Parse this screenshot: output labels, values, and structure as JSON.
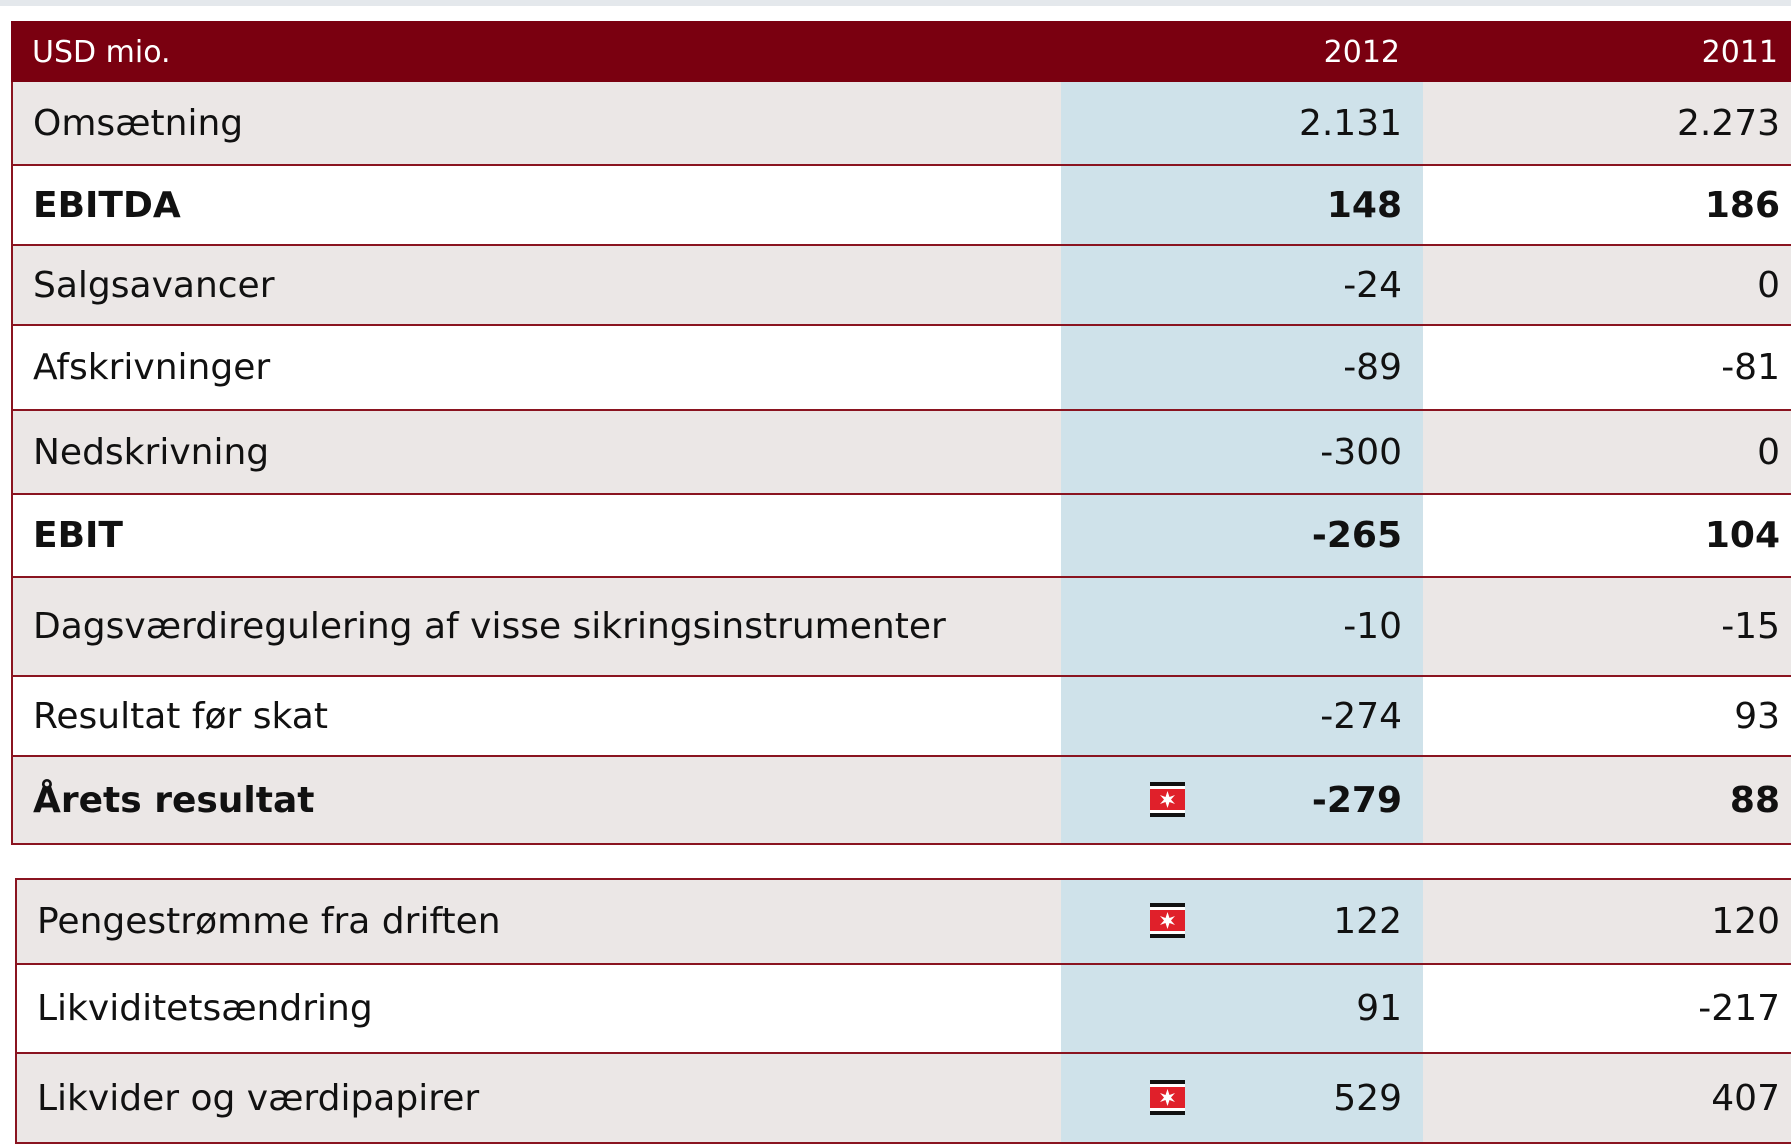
{
  "header": {
    "unit": "USD mio.",
    "years": [
      "2012",
      "2011"
    ]
  },
  "tables": [
    {
      "rows": [
        {
          "cells": [
            "Omsætning",
            "2.131",
            "2.273"
          ]
        },
        {
          "cells": [
            "EBITDA",
            "148",
            "186"
          ],
          "bold": true
        },
        {
          "cells": [
            "Salgsavancer",
            "-24",
            "0"
          ]
        },
        {
          "cells": [
            "Afskrivninger",
            "-89",
            "-81"
          ]
        },
        {
          "cells": [
            "Nedskrivning",
            "-300",
            "0"
          ]
        },
        {
          "cells": [
            "EBIT",
            "-265",
            "104"
          ],
          "bold": true
        },
        {
          "cells": [
            "Dagsværdiregulering af visse sikringsinstrumenter",
            "-10",
            "-15"
          ]
        },
        {
          "cells": [
            "Resultat før skat",
            "-274",
            "93"
          ]
        },
        {
          "cells": [
            "Årets resultat",
            "-279",
            "88"
          ],
          "bold": true,
          "marked": true
        }
      ]
    },
    {
      "rows": [
        {
          "cells": [
            "Pengestrømme fra driften",
            "122",
            "120"
          ],
          "marked": true
        },
        {
          "cells": [
            "Likviditetsændring",
            "91",
            "-217"
          ]
        },
        {
          "cells": [
            "Likvider og værdipapirer",
            "529",
            "407"
          ],
          "marked": true
        }
      ]
    }
  ]
}
